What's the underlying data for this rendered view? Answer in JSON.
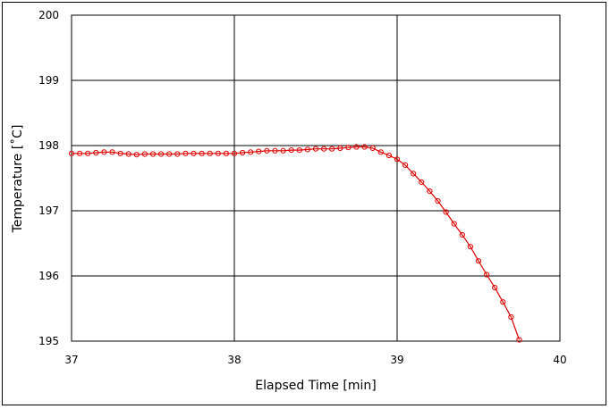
{
  "chart_data": {
    "type": "line",
    "title": "",
    "xlabel": "Elapsed Time [min]",
    "ylabel": "Temperature [˚C]",
    "xlim": [
      37,
      40
    ],
    "ylim": [
      195,
      200
    ],
    "xticks": [
      "37",
      "38",
      "39",
      "40"
    ],
    "yticks": [
      "195",
      "196",
      "197",
      "198",
      "199",
      "200"
    ],
    "grid": true,
    "marker": "open-circle",
    "series_color": "#e00000",
    "series": [
      {
        "x": [
          37.0,
          37.05,
          37.1,
          37.15,
          37.2,
          37.25,
          37.3,
          37.35,
          37.4,
          37.45,
          37.5,
          37.55,
          37.6,
          37.65,
          37.7,
          37.75,
          37.8,
          37.85,
          37.9,
          37.95,
          38.0,
          38.05,
          38.1,
          38.15,
          38.2,
          38.25,
          38.3,
          38.35,
          38.4,
          38.45,
          38.5,
          38.55,
          38.6,
          38.65,
          38.7,
          38.75,
          38.8,
          38.85,
          38.9,
          38.95,
          39.0,
          39.05,
          39.1,
          39.15,
          39.2,
          39.25,
          39.3,
          39.35,
          39.4,
          39.45,
          39.5,
          39.55,
          39.6,
          39.65,
          39.7,
          39.75
        ],
        "y": [
          197.88,
          197.88,
          197.88,
          197.89,
          197.9,
          197.9,
          197.88,
          197.87,
          197.86,
          197.87,
          197.87,
          197.87,
          197.87,
          197.87,
          197.88,
          197.88,
          197.88,
          197.88,
          197.88,
          197.88,
          197.88,
          197.89,
          197.9,
          197.91,
          197.92,
          197.92,
          197.92,
          197.93,
          197.93,
          197.94,
          197.95,
          197.95,
          197.95,
          197.96,
          197.97,
          197.98,
          197.98,
          197.96,
          197.9,
          197.85,
          197.79,
          197.7,
          197.57,
          197.44,
          197.3,
          197.15,
          196.98,
          196.8,
          196.63,
          196.45,
          196.23,
          196.02,
          195.82,
          195.6,
          195.37,
          195.02
        ]
      }
    ]
  }
}
